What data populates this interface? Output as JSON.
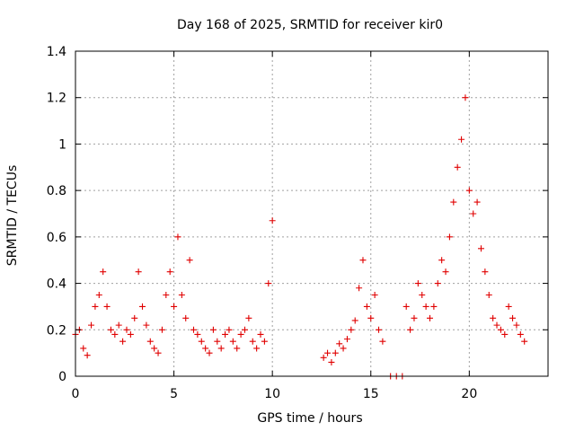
{
  "colors": {
    "series": "#e00000",
    "axis": "#000000",
    "grid": "#a0a0a0",
    "background": "#ffffff"
  },
  "chart_data": {
    "type": "scatter",
    "title": "Day 168 of 2025, SRMTID for receiver kir0",
    "xlabel": "GPS time / hours",
    "ylabel": "SRMTID / TECUs",
    "xlim": [
      0,
      24
    ],
    "ylim": [
      0,
      1.4
    ],
    "xticks": [
      0,
      5,
      10,
      15,
      20
    ],
    "xtick_labels": [
      "0",
      "5",
      "10",
      "15",
      "20"
    ],
    "yticks": [
      0,
      0.2,
      0.4,
      0.6,
      0.8,
      1.0,
      1.2,
      1.4
    ],
    "ytick_labels": [
      "0",
      "0.2",
      "0.4",
      "0.6",
      "0.8",
      "1",
      "1.2",
      "1.4"
    ],
    "grid": true,
    "marker": "plus",
    "series": [
      {
        "name": "SRMTID",
        "x": [
          0.0,
          0.2,
          0.4,
          0.6,
          0.8,
          1.0,
          1.2,
          1.4,
          1.6,
          1.8,
          2.0,
          2.2,
          2.4,
          2.6,
          2.8,
          3.0,
          3.2,
          3.4,
          3.6,
          3.8,
          4.0,
          4.2,
          4.4,
          4.6,
          4.8,
          5.0,
          5.2,
          5.4,
          5.6,
          5.8,
          6.0,
          6.2,
          6.4,
          6.6,
          6.8,
          7.0,
          7.2,
          7.4,
          7.6,
          7.8,
          8.0,
          8.2,
          8.4,
          8.6,
          8.8,
          9.0,
          9.2,
          9.4,
          9.6,
          9.8,
          10.0,
          12.6,
          12.8,
          13.0,
          13.2,
          13.4,
          13.6,
          13.8,
          14.0,
          14.2,
          14.4,
          14.6,
          14.8,
          15.0,
          15.2,
          15.4,
          15.6,
          16.0,
          16.3,
          16.6,
          16.8,
          17.0,
          17.2,
          17.4,
          17.6,
          17.8,
          18.0,
          18.2,
          18.4,
          18.6,
          18.8,
          19.0,
          19.2,
          19.4,
          19.6,
          19.8,
          20.0,
          20.2,
          20.4,
          20.6,
          20.8,
          21.0,
          21.2,
          21.4,
          21.6,
          21.8,
          22.0,
          22.2,
          22.4,
          22.6,
          22.8
        ],
        "y": [
          0.18,
          0.2,
          0.12,
          0.09,
          0.22,
          0.3,
          0.35,
          0.45,
          0.3,
          0.2,
          0.18,
          0.22,
          0.15,
          0.2,
          0.18,
          0.25,
          0.45,
          0.3,
          0.22,
          0.15,
          0.12,
          0.1,
          0.2,
          0.35,
          0.45,
          0.3,
          0.6,
          0.35,
          0.25,
          0.5,
          0.2,
          0.18,
          0.15,
          0.12,
          0.1,
          0.2,
          0.15,
          0.12,
          0.18,
          0.2,
          0.15,
          0.12,
          0.18,
          0.2,
          0.25,
          0.15,
          0.12,
          0.18,
          0.15,
          0.4,
          0.67,
          0.08,
          0.1,
          0.06,
          0.1,
          0.14,
          0.12,
          0.16,
          0.2,
          0.24,
          0.38,
          0.5,
          0.3,
          0.25,
          0.35,
          0.2,
          0.15,
          0.0,
          0.0,
          0.0,
          0.3,
          0.2,
          0.25,
          0.4,
          0.35,
          0.3,
          0.25,
          0.3,
          0.4,
          0.5,
          0.45,
          0.6,
          0.75,
          0.9,
          1.02,
          1.2,
          0.8,
          0.7,
          0.75,
          0.55,
          0.45,
          0.35,
          0.25,
          0.22,
          0.2,
          0.18,
          0.3,
          0.25,
          0.22,
          0.18,
          0.15
        ]
      }
    ]
  }
}
